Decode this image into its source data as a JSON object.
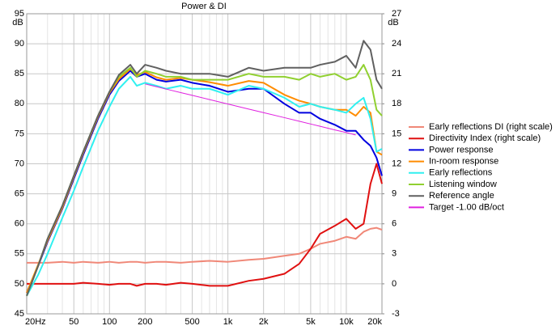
{
  "chart_data": {
    "type": "line",
    "title": "Power & DI",
    "y_label": "dB",
    "y2_label": "dB",
    "log_x": true,
    "grid": true,
    "x": [
      20,
      25,
      30,
      40,
      50,
      60,
      80,
      100,
      120,
      150,
      170,
      200,
      250,
      300,
      400,
      500,
      700,
      1000,
      1500,
      2000,
      3000,
      4000,
      5000,
      6000,
      8000,
      10000,
      12000,
      14000,
      16000,
      18000,
      20000
    ],
    "xlim": [
      20,
      20000
    ],
    "xticks": [
      {
        "value": 20,
        "label": "20Hz"
      },
      50,
      100,
      200,
      500,
      {
        "value": 1000,
        "label": "1k"
      },
      {
        "value": 2000,
        "label": "2k"
      },
      {
        "value": 5000,
        "label": "5k"
      },
      {
        "value": 10000,
        "label": "10k"
      },
      {
        "value": 20000,
        "label": "20k"
      }
    ],
    "xminorticks": [
      30,
      40,
      60,
      70,
      80,
      90,
      300,
      400,
      600,
      700,
      800,
      900,
      3000,
      4000,
      6000,
      7000,
      8000,
      9000
    ],
    "ylim": [
      45,
      95
    ],
    "yticks": [
      45,
      50,
      55,
      60,
      65,
      70,
      75,
      80,
      85,
      90,
      95
    ],
    "y2lim": [
      -3,
      27
    ],
    "y2ticks": [
      -3,
      0,
      3,
      6,
      9,
      12,
      15,
      18,
      21,
      24,
      27
    ],
    "legend": "right",
    "series": [
      {
        "name": "Early reflections DI (right scale)",
        "color": "#f08878",
        "axis": "y2",
        "values": [
          2.1,
          2.1,
          2.1,
          2.2,
          2.1,
          2.2,
          2.1,
          2.2,
          2.1,
          2.2,
          2.2,
          2.1,
          2.2,
          2.2,
          2.1,
          2.2,
          2.3,
          2.2,
          2.4,
          2.5,
          2.8,
          3,
          3.5,
          4,
          4.3,
          4.7,
          4.5,
          5.2,
          5.5,
          5.6,
          5.4
        ]
      },
      {
        "name": "Directivity Index (right scale)",
        "color": "#e01010",
        "axis": "y2",
        "values": [
          0,
          0,
          0,
          0,
          0,
          0.1,
          0,
          -0.1,
          0,
          0,
          -0.2,
          0,
          0,
          -0.1,
          0.1,
          0,
          -0.2,
          -0.2,
          0.3,
          0.5,
          1,
          2,
          3.5,
          5,
          5.8,
          6.5,
          5.5,
          6,
          10,
          12,
          10
        ]
      },
      {
        "name": "Power response",
        "color": "#0000e0",
        "values": [
          48.5,
          53,
          57,
          62.5,
          67.5,
          71.5,
          77.5,
          81.5,
          83.8,
          85.5,
          84.5,
          85,
          84,
          83.7,
          84,
          83.5,
          83,
          82,
          82.5,
          82.5,
          80,
          78.5,
          78.5,
          77.5,
          76.5,
          75.5,
          75.5,
          74,
          73,
          71,
          68
        ]
      },
      {
        "name": "In-room response",
        "color": "#ff8c00",
        "values": [
          48.5,
          53.2,
          57.2,
          62.7,
          67.8,
          71.8,
          77.8,
          81.8,
          84.1,
          85.8,
          84.8,
          85.3,
          84.4,
          84,
          84.3,
          84,
          83.6,
          83,
          83.8,
          83.5,
          81.5,
          80.5,
          80,
          79.5,
          79,
          79,
          78,
          79.5,
          78.5,
          72,
          71.5
        ]
      },
      {
        "name": "Early reflections",
        "color": "#30f0f0",
        "values": [
          48,
          51.5,
          55,
          61,
          65.5,
          69.5,
          75.5,
          79.5,
          82.5,
          84.5,
          83,
          83.5,
          83,
          82.5,
          83,
          82.5,
          82.5,
          81.5,
          83,
          82.5,
          81,
          79.5,
          80,
          79.5,
          79,
          78.5,
          80,
          81,
          77.5,
          72,
          72.5
        ]
      },
      {
        "name": "Listening window",
        "color": "#90d030",
        "values": [
          48,
          53,
          57.5,
          63,
          68,
          72,
          78,
          82,
          84.5,
          86,
          84.5,
          85.5,
          85,
          84.5,
          84.5,
          84,
          84,
          84,
          85,
          84.5,
          84.5,
          84,
          85,
          84.5,
          85,
          84,
          84.5,
          86.5,
          84,
          79,
          78
        ]
      },
      {
        "name": "Reference angle",
        "color": "#606060",
        "values": [
          48,
          53,
          57.5,
          63,
          68,
          72,
          78,
          82,
          84.8,
          86.5,
          85,
          86.5,
          86,
          85.5,
          85,
          85,
          85,
          84.5,
          86,
          85.5,
          86,
          86,
          86,
          86.5,
          87,
          88,
          86,
          90.5,
          89,
          84,
          82.5
        ]
      },
      {
        "name": "Target -1.00 dB/oct",
        "color": "#e020e0",
        "values": [
          null,
          null,
          null,
          null,
          null,
          null,
          null,
          null,
          null,
          null,
          null,
          83.3,
          82.84,
          82.46,
          81.86,
          81.4,
          80.7,
          79.96,
          79.12,
          78.53,
          77.69,
          77.09,
          76.63,
          76.25,
          75.65,
          75.2,
          74.8,
          null,
          null,
          null,
          null
        ]
      }
    ]
  }
}
